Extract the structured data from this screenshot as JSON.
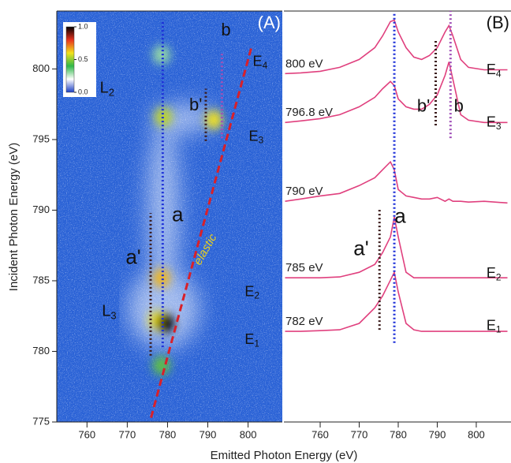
{
  "chart_data": [
    {
      "type": "heatmap",
      "panel_label": "(A)",
      "xlim": [
        752.5,
        808.5
      ],
      "xticks": [
        760,
        770,
        780,
        790,
        800
      ],
      "ylim": [
        775,
        804.1
      ],
      "yticks": [
        775,
        780,
        785,
        790,
        795,
        800
      ],
      "x_label": "Emitted Photon Energy (eV)",
      "y_label": "Incident Photon Energy (eV)",
      "background": "#2a62d6",
      "colorbar": {
        "lim": [
          0,
          1
        ],
        "ticks": [
          {
            "value": 0,
            "label": "0.0"
          },
          0.5,
          {
            "value": 1,
            "label": "1.0"
          }
        ],
        "colors": [
          "#1b3fc4",
          "#ffffff",
          "#2fb84a",
          "#f2e21c",
          "#e8321e",
          "#000000"
        ]
      },
      "hotspots": [
        {
          "x": 779,
          "y": 796.6,
          "intensity": 0.55
        },
        {
          "x": 791.5,
          "y": 796.4,
          "intensity": 0.6
        },
        {
          "x": 778.5,
          "y": 785.2,
          "intensity": 0.65
        },
        {
          "x": 777.5,
          "y": 782.2,
          "intensity": 0.6
        },
        {
          "x": 779.5,
          "y": 782,
          "intensity": 1.0
        },
        {
          "x": 778.5,
          "y": 779,
          "intensity": 0.45
        },
        {
          "x": 778.5,
          "y": 801,
          "intensity": 0.3
        }
      ],
      "lines": [
        {
          "x": [
            778.8,
            778.8
          ],
          "y": [
            780.3,
            803.5
          ],
          "color": "#1c2fd8",
          "style": "dotted"
        },
        {
          "x": [
            793.5,
            793.5
          ],
          "y": [
            795.1,
            801.2
          ],
          "color": "#a050b8",
          "style": "dotted"
        },
        {
          "x": [
            775.8,
            775.8
          ],
          "y": [
            779.7,
            789.8
          ],
          "color": "#3a1a1a",
          "style": "dotted"
        },
        {
          "x": [
            789.5,
            789.5
          ],
          "y": [
            794.9,
            798.6
          ],
          "color": "#3a1a1a",
          "style": "dotted"
        },
        {
          "x": [
            775.9,
            800.8
          ],
          "y": [
            775.3,
            801.5
          ],
          "color": "#d8202a",
          "style": "dashed"
        }
      ],
      "annotations": [
        {
          "text": "b",
          "x": 794.5,
          "y": 802.7,
          "size": 22,
          "color": "#111"
        },
        {
          "text": "b'",
          "x": 787,
          "y": 797.4,
          "size": 22,
          "color": "#111"
        },
        {
          "text": "a",
          "x": 782.5,
          "y": 789.6,
          "size": 26,
          "color": "#111"
        },
        {
          "text": "a'",
          "x": 771.5,
          "y": 786.6,
          "size": 26,
          "color": "#111"
        },
        {
          "text": "L",
          "sub": "2",
          "x": 765,
          "y": 798.6,
          "size": 20,
          "color": "#111"
        },
        {
          "text": "L",
          "sub": "3",
          "x": 765.5,
          "y": 782.8,
          "size": 20,
          "color": "#111"
        },
        {
          "text": "E",
          "sub": "4",
          "x": 803,
          "y": 800.5,
          "size": 18,
          "color": "#111"
        },
        {
          "text": "E",
          "sub": "3",
          "x": 802,
          "y": 795.2,
          "size": 18,
          "color": "#111"
        },
        {
          "text": "E",
          "sub": "2",
          "x": 801,
          "y": 784.2,
          "size": 18,
          "color": "#111"
        },
        {
          "text": "E",
          "sub": "1",
          "x": 801,
          "y": 780.8,
          "size": 18,
          "color": "#111"
        },
        {
          "text": "elastic",
          "x": 789.5,
          "y": 787.2,
          "size": 15,
          "color": "#e8d020",
          "rotate": -60
        }
      ]
    },
    {
      "type": "line",
      "panel_label": "(B)",
      "xlim": [
        750.7,
        808.9
      ],
      "xticks": [
        760,
        770,
        780,
        790,
        800
      ],
      "ylim": [
        775,
        804.1
      ],
      "x": [
        751,
        755,
        760,
        765,
        770,
        774,
        776,
        778,
        779,
        780,
        782,
        784,
        786,
        788,
        790,
        792,
        793,
        794,
        796,
        798,
        802,
        808
      ],
      "series": [
        {
          "name": "800 eV",
          "color": "#e0407e",
          "values": [
            799.67,
            799.72,
            799.83,
            800.11,
            800.67,
            801.51,
            802.34,
            803.35,
            803.46,
            802.62,
            801.51,
            800.84,
            800.67,
            800.95,
            801.51,
            802.62,
            803.07,
            802.34,
            800.67,
            800.11,
            799.94,
            799.94
          ]
        },
        {
          "name": "796.8 eV",
          "color": "#e0407e",
          "values": [
            796.21,
            796.32,
            796.48,
            796.76,
            797.32,
            797.99,
            798.6,
            799.11,
            798.83,
            797.88,
            797.32,
            797.15,
            797.15,
            797.49,
            798.16,
            799.55,
            800.5,
            799.27,
            796.76,
            796.37,
            796.21,
            796.21
          ]
        },
        {
          "name": "790 eV",
          "color": "#e0407e",
          "values": [
            790.63,
            790.79,
            791.01,
            791.18,
            791.74,
            792.3,
            792.86,
            793.42,
            792.86,
            791.46,
            791.01,
            790.9,
            790.79,
            790.79,
            790.9,
            790.63,
            790.79,
            790.63,
            790.63,
            790.57,
            790.63,
            790.51
          ]
        },
        {
          "name": "785 eV",
          "color": "#e0407e",
          "values": [
            785.21,
            785.21,
            785.21,
            785.27,
            785.6,
            786.16,
            787.0,
            788.11,
            789.51,
            788.11,
            785.6,
            785.21,
            785.21,
            785.21,
            785.21,
            785.21,
            785.21,
            785.21,
            785.21,
            785.21,
            785.21,
            785.21
          ]
        },
        {
          "name": "782 eV",
          "color": "#e0407e",
          "values": [
            781.42,
            781.42,
            781.47,
            781.53,
            781.98,
            783.09,
            783.93,
            785.04,
            785.6,
            784.21,
            781.98,
            781.53,
            781.42,
            781.42,
            781.42,
            781.42,
            781.42,
            781.42,
            781.42,
            781.42,
            781.42,
            781.42
          ]
        }
      ],
      "lines": [
        {
          "x": [
            779,
            779
          ],
          "y": [
            780.6,
            803.9
          ],
          "color": "#1c2fd8",
          "style": "dotted"
        },
        {
          "x": [
            793.4,
            793.4
          ],
          "y": [
            795.1,
            804.1
          ],
          "color": "#a050b8",
          "style": "dotted"
        },
        {
          "x": [
            789.6,
            789.6
          ],
          "y": [
            796.0,
            802.1
          ],
          "color": "#3a1a1a",
          "style": "dotted"
        },
        {
          "x": [
            775.2,
            775.2
          ],
          "y": [
            781.53,
            790.07
          ],
          "color": "#3a1a1a",
          "style": "dotted"
        }
      ],
      "annotations": [
        {
          "text": "b'",
          "x": 786.5,
          "y": 797.3,
          "size": 22,
          "color": "#111"
        },
        {
          "text": "b",
          "x": 795.5,
          "y": 797.3,
          "size": 22,
          "color": "#111"
        },
        {
          "text": "a'",
          "x": 770.5,
          "y": 787.2,
          "size": 26,
          "color": "#111"
        },
        {
          "text": "a",
          "x": 780.5,
          "y": 789.5,
          "size": 26,
          "color": "#111"
        },
        {
          "text": "E",
          "sub": "4",
          "x": 804.5,
          "y": 799.9,
          "size": 18,
          "color": "#111"
        },
        {
          "text": "E",
          "sub": "3",
          "x": 804.5,
          "y": 796.2,
          "size": 18,
          "color": "#111"
        },
        {
          "text": "E",
          "sub": "2",
          "x": 804.5,
          "y": 785.5,
          "size": 18,
          "color": "#111"
        },
        {
          "text": "E",
          "sub": "1",
          "x": 804.5,
          "y": 781.8,
          "size": 18,
          "color": "#111"
        }
      ]
    }
  ]
}
